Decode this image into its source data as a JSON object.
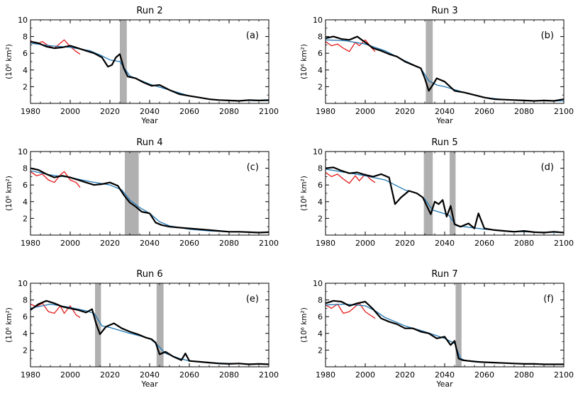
{
  "chart_data": [
    {
      "type": "line",
      "panel": "(a)",
      "title": "Run 2",
      "xlabel": "Year",
      "ylabel": "(10⁶ km²)",
      "xlim": [
        1980,
        2100
      ],
      "ylim": [
        0,
        10
      ],
      "xticks": [
        1980,
        2000,
        2020,
        2040,
        2060,
        2080,
        2100
      ],
      "yticks": [
        2,
        4,
        6,
        8,
        10
      ],
      "shaded": [
        [
          2025,
          2028.5
        ]
      ],
      "series": [
        {
          "color": "#000000",
          "x": [
            1980,
            1984,
            1988,
            1992,
            1996,
            2000,
            2004,
            2008,
            2012,
            2016,
            2019,
            2021,
            2023,
            2025,
            2027,
            2029,
            2033,
            2037,
            2041,
            2045,
            2050,
            2055,
            2060,
            2065,
            2070,
            2075,
            2080,
            2085,
            2090,
            2095,
            2100
          ],
          "y": [
            7.4,
            7.2,
            6.8,
            6.6,
            6.7,
            6.9,
            6.6,
            6.3,
            6.0,
            5.5,
            4.4,
            4.6,
            5.5,
            5.9,
            4.2,
            3.2,
            3.0,
            2.5,
            2.1,
            2.2,
            1.6,
            1.1,
            0.9,
            0.7,
            0.5,
            0.4,
            0.35,
            0.3,
            0.4,
            0.35,
            0.4
          ]
        },
        {
          "color": "#1f77b4",
          "x": [
            1980,
            1990,
            2000,
            2010,
            2015,
            2020,
            2025,
            2030,
            2035,
            2040,
            2050,
            2060,
            2070,
            2080,
            2090,
            2100
          ],
          "y": [
            7.2,
            6.9,
            6.7,
            6.3,
            5.8,
            5.2,
            5.0,
            3.3,
            2.8,
            2.3,
            1.6,
            0.9,
            0.5,
            0.35,
            0.33,
            0.32
          ]
        },
        {
          "color": "#e41a1c",
          "x": [
            1980,
            1983,
            1986,
            1989,
            1992,
            1995,
            1997,
            2000,
            2003,
            2005
          ],
          "y": [
            7.5,
            7.1,
            7.4,
            6.9,
            6.6,
            7.2,
            7.6,
            6.8,
            6.2,
            5.9
          ]
        }
      ]
    },
    {
      "type": "line",
      "panel": "(b)",
      "title": "Run 3",
      "xlabel": "Year",
      "ylabel": "(10⁶ km²)",
      "xlim": [
        1980,
        2100
      ],
      "ylim": [
        0,
        10
      ],
      "xticks": [
        1980,
        2000,
        2020,
        2040,
        2060,
        2080,
        2100
      ],
      "yticks": [
        2,
        4,
        6,
        8,
        10
      ],
      "shaded": [
        [
          2030.5,
          2034
        ]
      ],
      "series": [
        {
          "color": "#000000",
          "x": [
            1980,
            1984,
            1988,
            1992,
            1996,
            2000,
            2004,
            2008,
            2012,
            2016,
            2020,
            2024,
            2028,
            2030,
            2032,
            2034,
            2036,
            2040,
            2045,
            2050,
            2055,
            2060,
            2065,
            2070,
            2075,
            2080,
            2085,
            2090,
            2095,
            2100
          ],
          "y": [
            7.8,
            8.0,
            7.7,
            7.6,
            8.0,
            7.3,
            6.6,
            6.3,
            5.9,
            5.6,
            5.0,
            4.6,
            4.2,
            3.0,
            1.5,
            2.2,
            3.0,
            2.6,
            1.5,
            1.3,
            1.0,
            0.7,
            0.5,
            0.45,
            0.4,
            0.35,
            0.3,
            0.35,
            0.3,
            0.5
          ]
        },
        {
          "color": "#1f77b4",
          "x": [
            1980,
            1990,
            2000,
            2010,
            2020,
            2028,
            2032,
            2036,
            2040,
            2050,
            2060,
            2070,
            2080,
            2090,
            2100
          ],
          "y": [
            7.6,
            7.5,
            7.1,
            6.3,
            5.1,
            4.2,
            2.7,
            2.2,
            2.0,
            1.3,
            0.7,
            0.45,
            0.35,
            0.3,
            0.3
          ]
        },
        {
          "color": "#e41a1c",
          "x": [
            1980,
            1983,
            1986,
            1989,
            1992,
            1995,
            1997,
            2000,
            2003,
            2005
          ],
          "y": [
            7.4,
            6.9,
            7.1,
            6.6,
            6.2,
            7.3,
            6.9,
            7.6,
            6.7,
            6.2
          ]
        }
      ]
    },
    {
      "type": "line",
      "panel": "(c)",
      "title": "Run 4",
      "xlabel": "",
      "ylabel": "(10⁶ km²)",
      "xlim": [
        1980,
        2100
      ],
      "ylim": [
        0,
        10
      ],
      "xticks": [
        1980,
        2000,
        2020,
        2040,
        2060,
        2080,
        2100
      ],
      "yticks": [
        2,
        4,
        6,
        8,
        10
      ],
      "shaded": [
        [
          2027.5,
          2034.5
        ]
      ],
      "series": [
        {
          "color": "#000000",
          "x": [
            1980,
            1984,
            1988,
            1992,
            1996,
            2000,
            2004,
            2008,
            2012,
            2016,
            2020,
            2024,
            2027,
            2030,
            2033,
            2036,
            2040,
            2043,
            2046,
            2050,
            2055,
            2060,
            2065,
            2070,
            2075,
            2080,
            2085,
            2090,
            2095,
            2100
          ],
          "y": [
            8.0,
            7.8,
            7.3,
            6.9,
            7.1,
            6.9,
            6.6,
            6.3,
            6.0,
            6.1,
            6.3,
            5.9,
            4.8,
            3.9,
            3.4,
            2.8,
            2.6,
            1.5,
            1.2,
            1.0,
            0.9,
            0.8,
            0.7,
            0.6,
            0.5,
            0.4,
            0.4,
            0.35,
            0.3,
            0.35
          ]
        },
        {
          "color": "#1f77b4",
          "x": [
            1980,
            1990,
            2000,
            2010,
            2020,
            2026,
            2030,
            2035,
            2040,
            2045,
            2050,
            2060,
            2070,
            2080,
            2090,
            2100
          ],
          "y": [
            7.7,
            7.2,
            6.9,
            6.4,
            6.0,
            5.4,
            4.2,
            3.3,
            2.6,
            1.6,
            1.1,
            0.7,
            0.5,
            0.4,
            0.35,
            0.33
          ]
        },
        {
          "color": "#e41a1c",
          "x": [
            1980,
            1983,
            1986,
            1989,
            1992,
            1995,
            1997,
            2000,
            2003,
            2005
          ],
          "y": [
            7.6,
            7.1,
            7.3,
            6.6,
            6.3,
            7.2,
            7.6,
            6.6,
            6.3,
            5.7
          ]
        }
      ]
    },
    {
      "type": "line",
      "panel": "(d)",
      "title": "Run 5",
      "xlabel": "",
      "ylabel": "(10⁶ km²)",
      "xlim": [
        1980,
        2100
      ],
      "ylim": [
        0,
        10
      ],
      "xticks": [
        1980,
        2000,
        2020,
        2040,
        2060,
        2080,
        2100
      ],
      "yticks": [
        2,
        4,
        6,
        8,
        10
      ],
      "shaded": [
        [
          2029.5,
          2034
        ],
        [
          2042.5,
          2045.5
        ]
      ],
      "series": [
        {
          "color": "#000000",
          "x": [
            1980,
            1984,
            1988,
            1992,
            1996,
            2000,
            2004,
            2008,
            2012,
            2015,
            2018,
            2022,
            2026,
            2029,
            2031,
            2033,
            2035,
            2037,
            2039,
            2041,
            2043,
            2045,
            2048,
            2052,
            2055,
            2057,
            2060,
            2065,
            2070,
            2075,
            2080,
            2085,
            2090,
            2095,
            2100
          ],
          "y": [
            8.0,
            8.1,
            7.7,
            7.4,
            7.5,
            7.2,
            7.0,
            7.3,
            6.9,
            3.7,
            4.5,
            5.3,
            5.0,
            4.5,
            3.5,
            2.5,
            4.0,
            3.7,
            4.2,
            2.2,
            3.5,
            1.3,
            1.0,
            1.4,
            0.8,
            2.6,
            0.8,
            0.6,
            0.5,
            0.4,
            0.5,
            0.35,
            0.3,
            0.4,
            0.3
          ]
        },
        {
          "color": "#1f77b4",
          "x": [
            1980,
            1990,
            2000,
            2010,
            2015,
            2020,
            2026,
            2030,
            2034,
            2038,
            2042,
            2046,
            2050,
            2060,
            2070,
            2080,
            2090,
            2100
          ],
          "y": [
            7.9,
            7.5,
            7.1,
            6.6,
            6.0,
            5.4,
            5.0,
            4.3,
            3.0,
            2.7,
            2.4,
            1.1,
            1.0,
            0.7,
            0.5,
            0.4,
            0.35,
            0.3
          ]
        },
        {
          "color": "#e41a1c",
          "x": [
            1980,
            1983,
            1986,
            1989,
            1992,
            1995,
            1997,
            2000,
            2003,
            2005
          ],
          "y": [
            7.5,
            7.0,
            7.3,
            6.7,
            6.2,
            7.1,
            6.5,
            7.3,
            6.6,
            6.3
          ]
        }
      ]
    },
    {
      "type": "line",
      "panel": "(e)",
      "title": "Run 6",
      "xlabel": "Year",
      "ylabel": "(10⁶ km²)",
      "xlim": [
        1980,
        2100
      ],
      "ylim": [
        0,
        10
      ],
      "xticks": [
        1980,
        2000,
        2020,
        2040,
        2060,
        2080,
        2100
      ],
      "yticks": [
        2,
        4,
        6,
        8,
        10
      ],
      "shaded": [
        [
          2012.5,
          2015.5
        ],
        [
          2043.5,
          2047
        ]
      ],
      "series": [
        {
          "color": "#000000",
          "x": [
            1980,
            1984,
            1988,
            1992,
            1996,
            2000,
            2004,
            2008,
            2011,
            2013,
            2015,
            2018,
            2022,
            2026,
            2030,
            2034,
            2038,
            2041,
            2043,
            2045,
            2048,
            2052,
            2056,
            2058,
            2060,
            2065,
            2070,
            2075,
            2080,
            2085,
            2090,
            2095,
            2100
          ],
          "y": [
            6.8,
            7.5,
            7.9,
            7.6,
            7.2,
            7.0,
            6.8,
            6.5,
            6.9,
            5.2,
            3.9,
            4.8,
            5.2,
            4.6,
            4.2,
            3.9,
            3.5,
            3.3,
            2.9,
            1.5,
            1.8,
            1.2,
            0.8,
            1.6,
            0.7,
            0.6,
            0.5,
            0.4,
            0.35,
            0.4,
            0.3,
            0.35,
            0.3
          ]
        },
        {
          "color": "#1f77b4",
          "x": [
            1980,
            1990,
            2000,
            2008,
            2012,
            2016,
            2020,
            2030,
            2040,
            2044,
            2048,
            2055,
            2060,
            2070,
            2080,
            2090,
            2100
          ],
          "y": [
            7.0,
            7.5,
            7.1,
            6.7,
            6.4,
            4.9,
            4.7,
            4.0,
            3.4,
            2.6,
            1.6,
            1.0,
            0.7,
            0.5,
            0.4,
            0.35,
            0.3
          ]
        },
        {
          "color": "#e41a1c",
          "x": [
            1980,
            1983,
            1986,
            1989,
            1992,
            1995,
            1997,
            2000,
            2003,
            2005
          ],
          "y": [
            7.5,
            7.2,
            7.6,
            6.6,
            6.4,
            7.3,
            6.4,
            7.3,
            6.2,
            5.9
          ]
        }
      ]
    },
    {
      "type": "line",
      "panel": "(f)",
      "title": "Run 7",
      "xlabel": "Year",
      "ylabel": "(10⁶ km²)",
      "xlim": [
        1980,
        2100
      ],
      "ylim": [
        0,
        10
      ],
      "xticks": [
        1980,
        2000,
        2020,
        2040,
        2060,
        2080,
        2100
      ],
      "yticks": [
        2,
        4,
        6,
        8,
        10
      ],
      "shaded": [
        [
          2045.5,
          2048.5
        ]
      ],
      "series": [
        {
          "color": "#000000",
          "x": [
            1980,
            1984,
            1988,
            1992,
            1996,
            2000,
            2004,
            2008,
            2012,
            2016,
            2020,
            2024,
            2028,
            2032,
            2036,
            2040,
            2043,
            2045,
            2047,
            2049,
            2052,
            2056,
            2060,
            2065,
            2070,
            2075,
            2080,
            2085,
            2090,
            2095,
            2100
          ],
          "y": [
            7.6,
            7.9,
            7.8,
            7.3,
            7.6,
            7.8,
            6.9,
            5.8,
            5.4,
            5.1,
            4.6,
            4.6,
            4.2,
            4.0,
            3.4,
            3.6,
            2.6,
            3.1,
            1.0,
            0.8,
            0.7,
            0.6,
            0.55,
            0.5,
            0.45,
            0.4,
            0.35,
            0.35,
            0.3,
            0.3,
            0.3
          ]
        },
        {
          "color": "#1f77b4",
          "x": [
            1980,
            1990,
            2000,
            2005,
            2010,
            2020,
            2030,
            2040,
            2045,
            2048,
            2050,
            2060,
            2070,
            2080,
            2090,
            2100
          ],
          "y": [
            7.4,
            7.5,
            7.3,
            6.7,
            5.9,
            4.9,
            4.2,
            3.4,
            2.8,
            1.0,
            0.8,
            0.55,
            0.45,
            0.35,
            0.3,
            0.28
          ]
        },
        {
          "color": "#e41a1c",
          "x": [
            1980,
            1983,
            1986,
            1989,
            1992,
            1995,
            1997,
            2000,
            2003,
            2005
          ],
          "y": [
            7.4,
            7.0,
            7.5,
            6.4,
            6.6,
            7.2,
            7.6,
            6.6,
            6.1,
            5.8
          ]
        }
      ]
    }
  ]
}
